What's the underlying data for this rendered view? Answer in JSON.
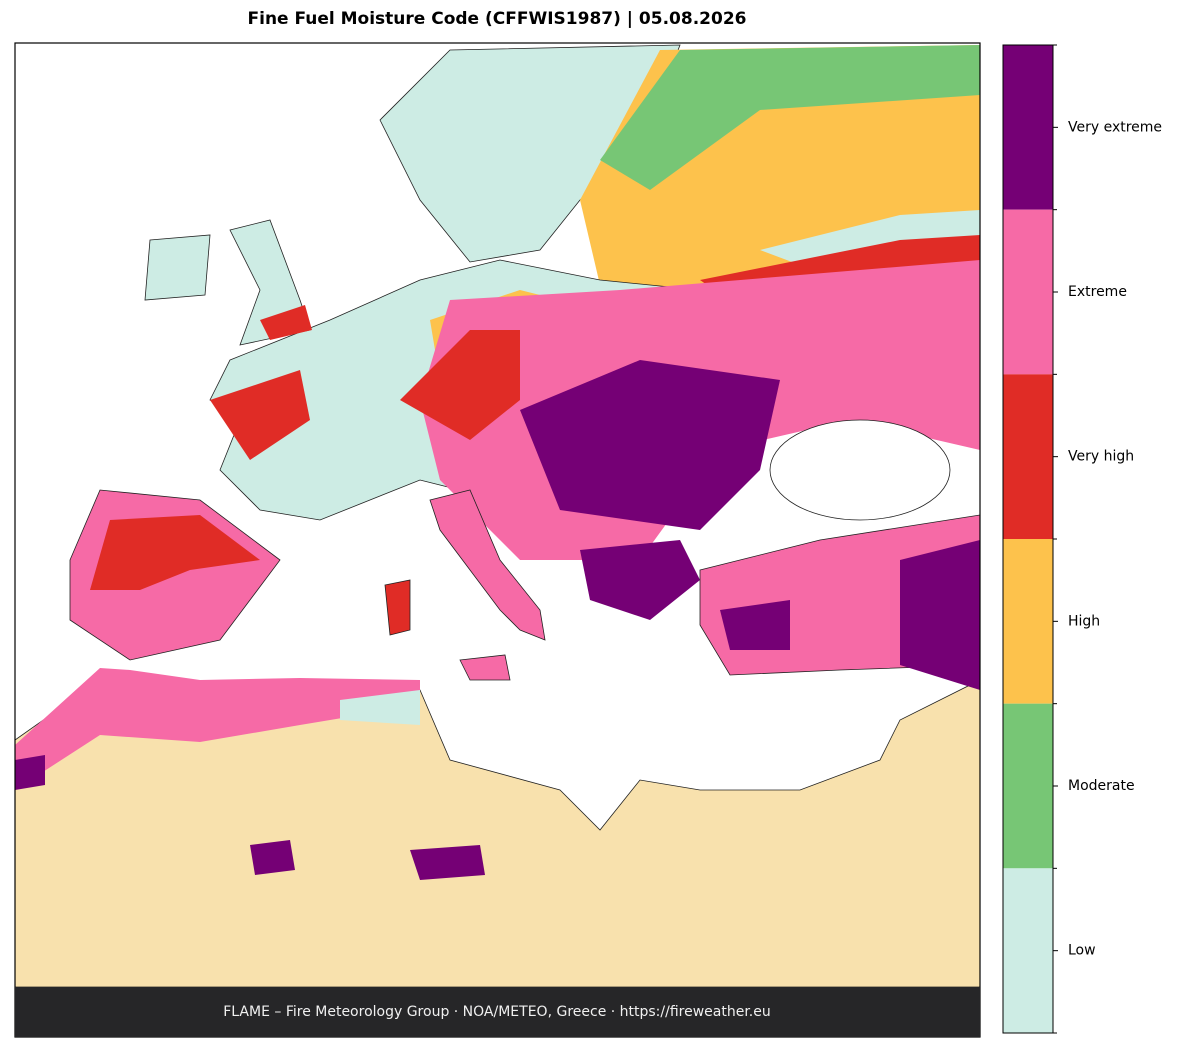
{
  "header": {
    "title": "Fine Fuel Moisture Code (CFFWIS1987)  |  05.08.2026"
  },
  "legend": {
    "items": [
      {
        "label": "Very extreme",
        "color": "#750075"
      },
      {
        "label": "Extreme",
        "color": "#f66aa6"
      },
      {
        "label": "Very high",
        "color": "#e02c26"
      },
      {
        "label": "High",
        "color": "#fdc24c"
      },
      {
        "label": "Moderate",
        "color": "#77c675"
      },
      {
        "label": "Low",
        "color": "#cdece4"
      }
    ]
  },
  "footer": {
    "text": "FLAME – Fire Meteorology Group · NOA/METEO, Greece · https://fireweather.eu"
  }
}
